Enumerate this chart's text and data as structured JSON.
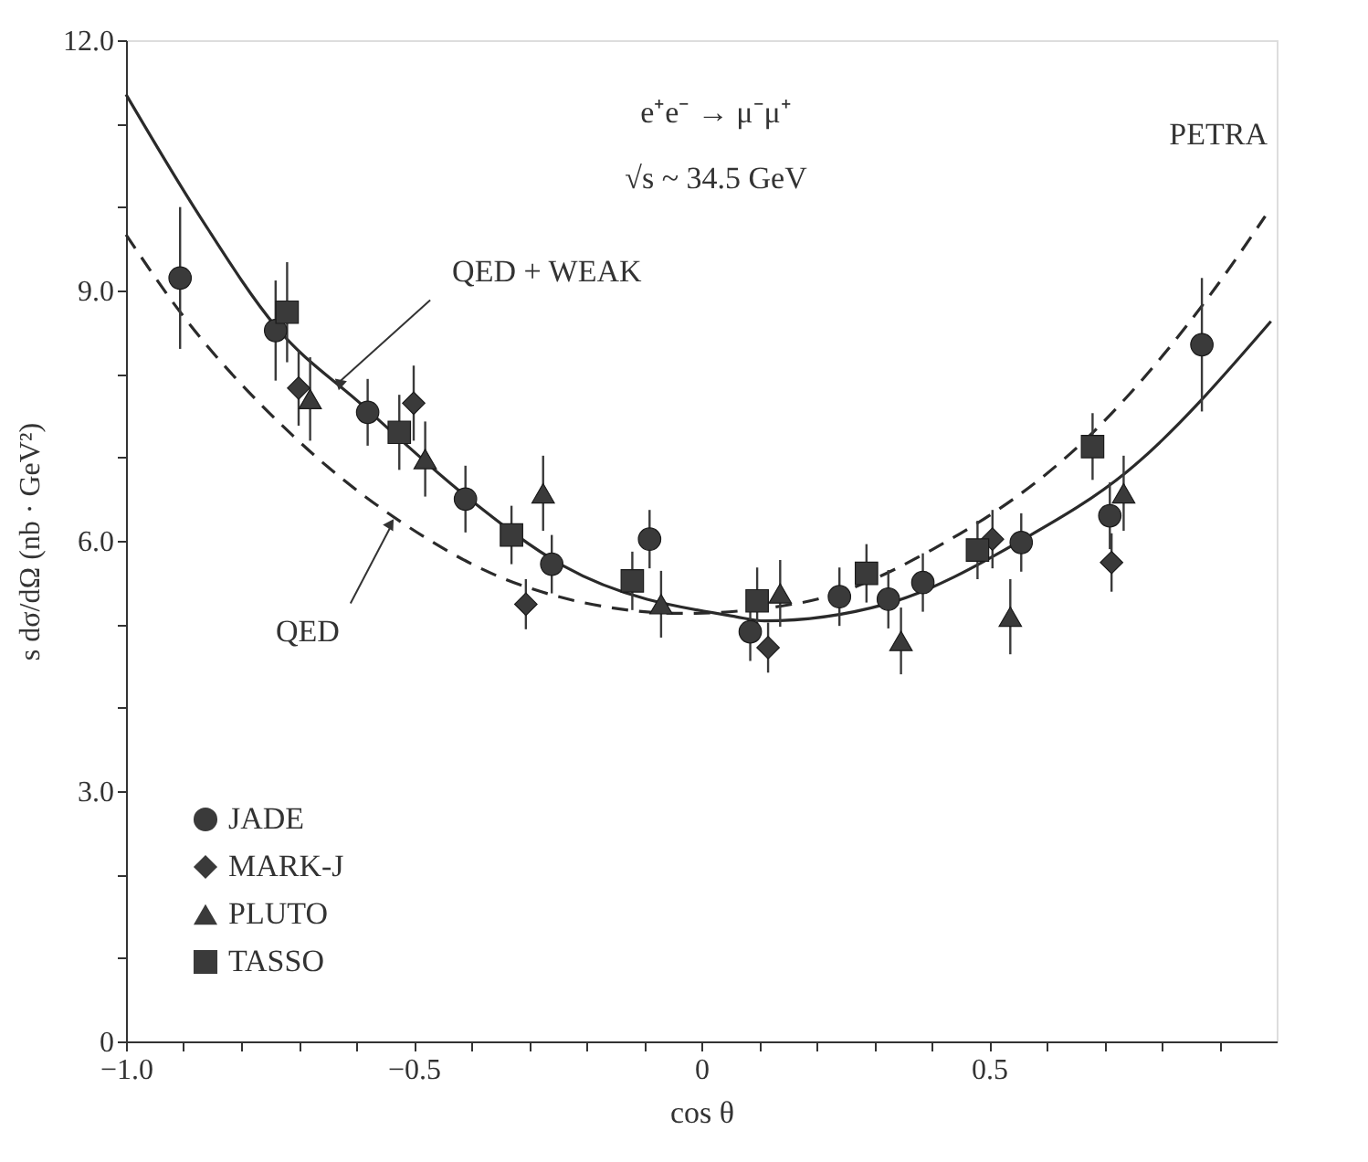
{
  "chart_data": {
    "type": "scatter",
    "xlabel": "cos θ",
    "ylabel": "s dσ/dΩ (nb · GeV²)",
    "xlim": [
      -1.0,
      1.0
    ],
    "ylim": [
      0,
      12.0
    ],
    "xticks": [
      {
        "value": -1.0,
        "label": "−1.0"
      },
      {
        "value": -0.9,
        "label": null
      },
      {
        "value": -0.8,
        "label": null
      },
      {
        "value": -0.7,
        "label": null
      },
      {
        "value": -0.6,
        "label": null
      },
      {
        "value": -0.5,
        "label": "−0.5"
      },
      {
        "value": -0.4,
        "label": null
      },
      {
        "value": -0.3,
        "label": null
      },
      {
        "value": -0.2,
        "label": null
      },
      {
        "value": -0.1,
        "label": null
      },
      {
        "value": 0,
        "label": "0"
      },
      {
        "value": 0.1,
        "label": null
      },
      {
        "value": 0.2,
        "label": null
      },
      {
        "value": 0.3,
        "label": null
      },
      {
        "value": 0.4,
        "label": null
      },
      {
        "value": 0.5,
        "label": "0.5"
      },
      {
        "value": 0.6,
        "label": null
      },
      {
        "value": 0.7,
        "label": null
      },
      {
        "value": 0.8,
        "label": null
      },
      {
        "value": 0.9,
        "label": null
      }
    ],
    "yticks": [
      {
        "value": 0,
        "label": "0"
      },
      {
        "value": 1,
        "label": null
      },
      {
        "value": 2,
        "label": null
      },
      {
        "value": 3,
        "label": "3.0"
      },
      {
        "value": 4,
        "label": null
      },
      {
        "value": 5,
        "label": null
      },
      {
        "value": 6,
        "label": "6.0"
      },
      {
        "value": 7,
        "label": null
      },
      {
        "value": 8,
        "label": null
      },
      {
        "value": 9,
        "label": "9.0"
      },
      {
        "value": 10,
        "label": null
      },
      {
        "value": 11,
        "label": null
      },
      {
        "value": 12,
        "label": "12.0"
      }
    ],
    "grid": false,
    "legend": "bottom left",
    "annotations": [
      "e⁺e⁻ → μ⁻μ⁺",
      "√s ~ 34.5 GeV",
      "PETRA",
      {
        "text": "QED + WEAK",
        "x": -0.63,
        "y": 7.9
      },
      {
        "text": "QED",
        "x": -0.54,
        "y": 6.17
      }
    ],
    "series": [
      {
        "name": "JADE",
        "marker": "circle",
        "color": "#3a3a3a",
        "x": [
          -0.906,
          -0.74,
          -0.58,
          -0.41,
          -0.26,
          -0.09,
          0.085,
          0.24,
          0.325,
          0.385,
          0.556,
          0.71,
          0.87
        ],
        "values": [
          9.15,
          8.52,
          7.54,
          6.5,
          5.72,
          6.02,
          4.91,
          5.33,
          5.3,
          5.5,
          5.98,
          6.3,
          8.35
        ],
        "errors": [
          0.85,
          0.6,
          0.4,
          0.4,
          0.35,
          0.35,
          0.35,
          0.35,
          0.35,
          0.35,
          0.35,
          0.4,
          0.8
        ]
      },
      {
        "name": "MARK-J",
        "marker": "diamond",
        "color": "#3a3a3a",
        "x": [
          -0.7,
          -0.5,
          -0.305,
          0.116,
          0.506,
          0.713
        ],
        "values": [
          7.83,
          7.65,
          5.24,
          4.72,
          6.02,
          5.74
        ],
        "errors": [
          0.45,
          0.45,
          0.3,
          0.3,
          0.35,
          0.35
        ]
      },
      {
        "name": "PLUTO",
        "marker": "triangle",
        "color": "#3a3a3a",
        "x": [
          -0.68,
          -0.48,
          -0.275,
          -0.07,
          0.137,
          0.347,
          0.537,
          0.734
        ],
        "values": [
          7.7,
          6.98,
          6.57,
          5.24,
          5.37,
          4.8,
          5.09,
          6.57
        ],
        "errors": [
          0.5,
          0.45,
          0.45,
          0.4,
          0.4,
          0.4,
          0.45,
          0.45
        ]
      },
      {
        "name": "TASSO",
        "marker": "square",
        "color": "#3a3a3a",
        "x": [
          -0.72,
          -0.525,
          -0.33,
          -0.12,
          0.097,
          0.287,
          0.48,
          0.68
        ],
        "values": [
          8.74,
          7.3,
          6.07,
          5.52,
          5.28,
          5.61,
          5.89,
          7.13
        ],
        "errors": [
          0.6,
          0.45,
          0.35,
          0.35,
          0.4,
          0.35,
          0.35,
          0.4
        ]
      },
      {
        "type": "line",
        "line_style": "solid",
        "color": "#2a2a2a",
        "x": [
          -1.0,
          -0.87,
          -0.74,
          -0.59,
          -0.41,
          -0.24,
          0.06,
          0.11,
          0.32,
          0.56,
          0.74,
          0.99
        ],
        "values": [
          11.35,
          9.87,
          8.57,
          7.63,
          6.54,
          5.7,
          5.09,
          5.04,
          5.24,
          6.02,
          6.83,
          8.63
        ]
      },
      {
        "type": "line",
        "line_style": "dashed",
        "color": "#2a2a2a",
        "x": [
          -1.0,
          -0.91,
          -0.71,
          -0.525,
          -0.31,
          -0.03,
          0.175,
          0.4,
          0.685,
          0.89,
          0.98
        ],
        "values": [
          9.67,
          8.78,
          7.26,
          6.24,
          5.46,
          5.13,
          5.26,
          5.89,
          7.33,
          9.0,
          9.89
        ]
      }
    ]
  }
}
